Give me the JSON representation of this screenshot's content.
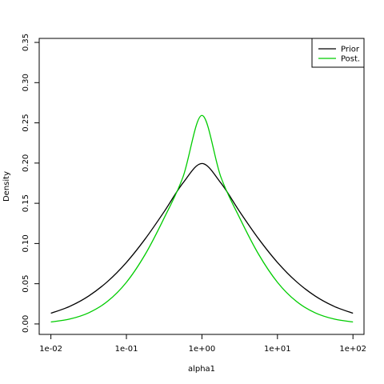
{
  "chart_data": {
    "type": "line",
    "xlabel": "alpha1",
    "ylabel": "Density",
    "x_scale": "log10",
    "x_ticks": [
      0.01,
      0.1,
      1,
      10,
      100
    ],
    "x_tick_labels": [
      "1e-02",
      "1e-01",
      "1e+00",
      "1e+01",
      "1e+02"
    ],
    "xlim": [
      0.007,
      140
    ],
    "y_ticks": [
      0,
      0.05,
      0.1,
      0.15,
      0.2,
      0.25,
      0.3,
      0.35
    ],
    "y_tick_labels": [
      "0.00",
      "0.05",
      "0.10",
      "0.15",
      "0.20",
      "0.25",
      "0.30",
      "0.35"
    ],
    "ylim": [
      -0.013,
      0.355
    ],
    "grid": false,
    "legend_position": "top-right",
    "series": [
      {
        "name": "Prior",
        "color": "#000000",
        "x": [
          0.01,
          0.0178,
          0.0316,
          0.0562,
          0.1,
          0.1778,
          0.3162,
          0.5623,
          1,
          1.778,
          3.162,
          5.623,
          10,
          17.78,
          31.62,
          56.23,
          100
        ],
        "y": [
          0.0133,
          0.0219,
          0.0347,
          0.0527,
          0.0765,
          0.1059,
          0.1396,
          0.1754,
          0.1995,
          0.1754,
          0.1396,
          0.1059,
          0.0765,
          0.0527,
          0.0347,
          0.0219,
          0.0133
        ]
      },
      {
        "name": "Post.",
        "color": "#00cc00",
        "x": [
          0.01,
          0.0178,
          0.0316,
          0.0562,
          0.1,
          0.1778,
          0.3162,
          0.5623,
          1,
          1.778,
          3.162,
          5.623,
          10,
          17.78,
          31.62,
          56.23,
          100
        ],
        "y": [
          0.0024,
          0.0061,
          0.0138,
          0.0281,
          0.0518,
          0.0867,
          0.1318,
          0.1829,
          0.2593,
          0.1829,
          0.1318,
          0.0867,
          0.0518,
          0.0281,
          0.0138,
          0.0061,
          0.0024
        ]
      }
    ]
  }
}
